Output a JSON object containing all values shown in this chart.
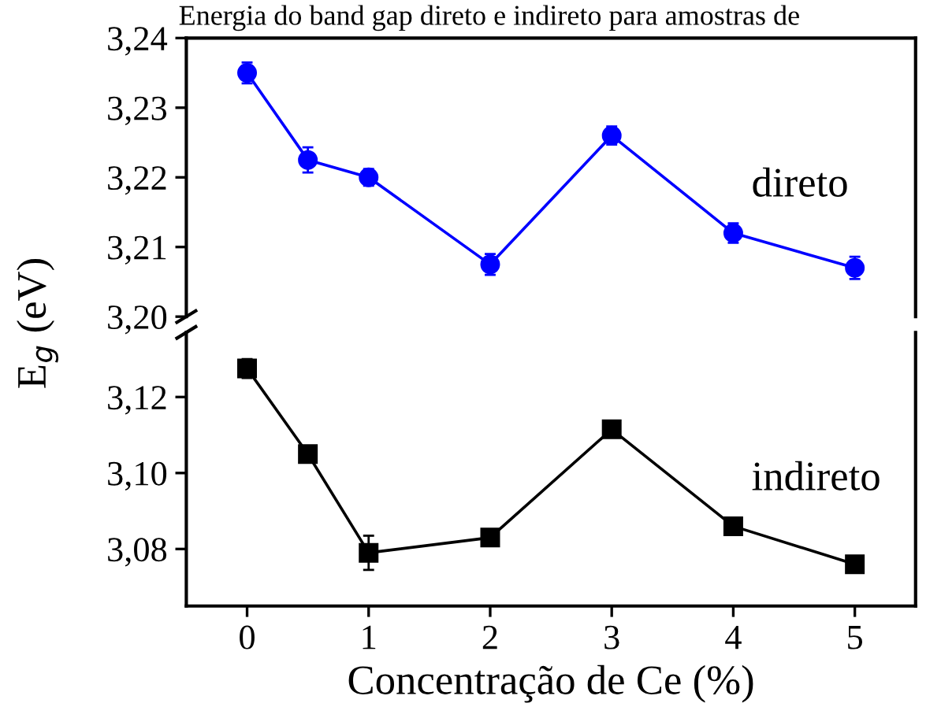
{
  "chart_data": [
    {
      "type": "line",
      "title": "Energia do band gap direto e indireto para amostras de",
      "x": [
        0,
        0.5,
        1,
        2,
        3,
        4,
        5
      ],
      "xlim": [
        -0.5,
        5.5
      ],
      "xticks": [
        0,
        1,
        2,
        3,
        4,
        5
      ],
      "ylim": [
        3.2,
        3.24
      ],
      "yticks": [
        {
          "value": 3.2,
          "label": "3,20"
        },
        {
          "value": 3.21,
          "label": "3,21"
        },
        {
          "value": 3.22,
          "label": "3,22"
        },
        {
          "value": 3.23,
          "label": "3,23"
        },
        {
          "value": 3.24,
          "label": "3,24"
        }
      ],
      "tick_labels": "y",
      "marker": "circle",
      "grid": false,
      "legend": false,
      "series": [
        {
          "name": "direto",
          "color": "#0000ff",
          "values": [
            3.235,
            3.2225,
            3.22,
            3.2075,
            3.226,
            3.212,
            3.207
          ],
          "errors": [
            0.0015,
            0.0018,
            0.0012,
            0.0015,
            0.0013,
            0.0014,
            0.0016
          ]
        }
      ]
    },
    {
      "type": "line",
      "x": [
        0,
        0.5,
        1,
        2,
        3,
        4,
        5
      ],
      "xlim": [
        -0.5,
        5.5
      ],
      "xticks": [
        0,
        1,
        2,
        3,
        4,
        5
      ],
      "ylim": [
        3.065,
        3.137
      ],
      "yticks": [
        {
          "value": 3.08,
          "label": "3,08"
        },
        {
          "value": 3.1,
          "label": "3,10"
        },
        {
          "value": 3.12,
          "label": "3,12"
        }
      ],
      "xlabel": "Concentração de Ce (%)",
      "ylabel": "E$_{g}$ (eV)",
      "marker": "square",
      "grid": false,
      "legend": false,
      "series": [
        {
          "name": "indireto",
          "color": "#000000",
          "values": [
            3.1275,
            3.105,
            3.079,
            3.083,
            3.1115,
            3.086,
            3.076
          ],
          "errors": [
            0.0025,
            0.0013,
            0.0045,
            0.0015,
            0.0013,
            0.0015,
            0.0013
          ]
        }
      ]
    }
  ]
}
